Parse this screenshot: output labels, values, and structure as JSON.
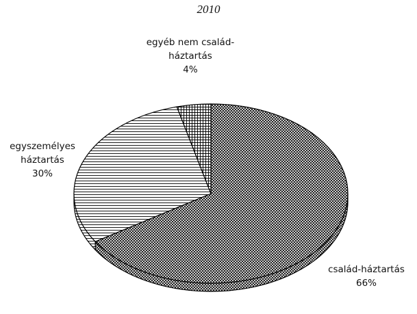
{
  "chart_data": {
    "type": "pie",
    "title": "2010",
    "categories": [
      "család-háztartás",
      "egyszemélyes háztartás",
      "egyéb nem család-háztartás"
    ],
    "values": [
      66,
      30,
      4
    ],
    "value_labels": [
      "66%",
      "30%",
      "4%"
    ],
    "colors": [
      "#000000",
      "#000000",
      "#000000"
    ]
  }
}
